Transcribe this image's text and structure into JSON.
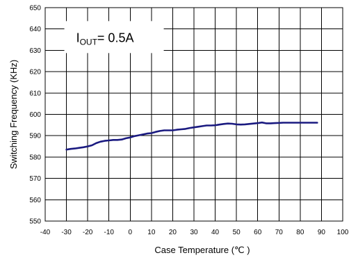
{
  "chart_data": {
    "type": "line",
    "title": "",
    "xlabel": "Case  Temperature (℃ )",
    "ylabel": "Switching Frequency (KHz)",
    "xlim": [
      -40,
      100
    ],
    "ylim": [
      550,
      650
    ],
    "x_ticks": [
      -40,
      -30,
      -20,
      -10,
      0,
      10,
      20,
      30,
      40,
      50,
      60,
      70,
      80,
      90,
      100
    ],
    "y_ticks": [
      550,
      560,
      570,
      580,
      590,
      600,
      610,
      620,
      630,
      640,
      650
    ],
    "grid": true,
    "annotation": {
      "main": "I",
      "subscript": "OUT",
      "value": "= 0.5A"
    },
    "series": [
      {
        "color": "#1a1a80",
        "x": [
          -30,
          -28,
          -26,
          -24,
          -22,
          -20,
          -18,
          -16,
          -14,
          -12,
          -10,
          -8,
          -6,
          -4,
          -2,
          0,
          2,
          4,
          6,
          8,
          10,
          12,
          14,
          16,
          18,
          20,
          22,
          24,
          26,
          28,
          30,
          32,
          34,
          36,
          38,
          40,
          42,
          44,
          46,
          48,
          50,
          52,
          54,
          56,
          58,
          60,
          62,
          64,
          66,
          68,
          70,
          72,
          74,
          76,
          78,
          80,
          82,
          84,
          86,
          88
        ],
        "y": [
          583.5,
          583.8,
          584.0,
          584.3,
          584.6,
          585.0,
          585.5,
          586.5,
          587.2,
          587.6,
          587.8,
          588.0,
          588.0,
          588.2,
          588.8,
          589.2,
          589.8,
          590.2,
          590.6,
          591.0,
          591.2,
          591.8,
          592.2,
          592.5,
          592.5,
          592.5,
          592.8,
          593.0,
          593.2,
          593.6,
          593.9,
          594.2,
          594.5,
          594.8,
          594.8,
          594.9,
          595.2,
          595.5,
          595.7,
          595.6,
          595.3,
          595.2,
          595.3,
          595.5,
          595.7,
          595.9,
          596.2,
          595.8,
          595.8,
          595.9,
          596.0,
          596.1,
          596.1,
          596.1,
          596.1,
          596.1,
          596.1,
          596.1,
          596.1,
          596.1
        ]
      }
    ]
  }
}
